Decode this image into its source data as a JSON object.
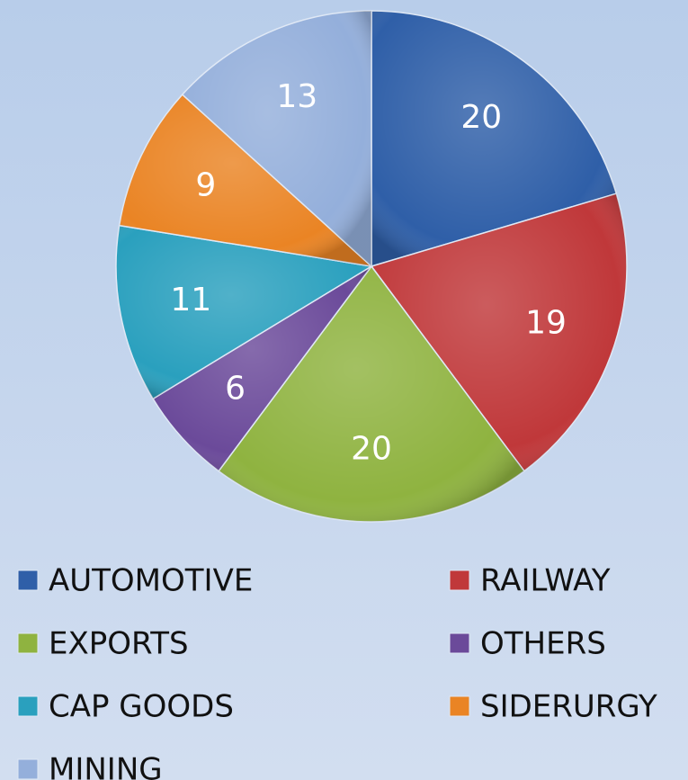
{
  "chart_data": {
    "type": "pie",
    "categories": [
      "AUTOMOTIVE",
      "RAILWAY",
      "EXPORTS",
      "OTHERS",
      "CAP GOODS",
      "SIDERURGY",
      "MINING"
    ],
    "values": [
      20,
      19,
      20,
      6,
      11,
      9,
      13
    ],
    "colors": [
      "#2f5fa8",
      "#c0383a",
      "#8fb340",
      "#6b4a9a",
      "#2aa0be",
      "#ea8424",
      "#94afdb"
    ],
    "legend": "bottom"
  }
}
